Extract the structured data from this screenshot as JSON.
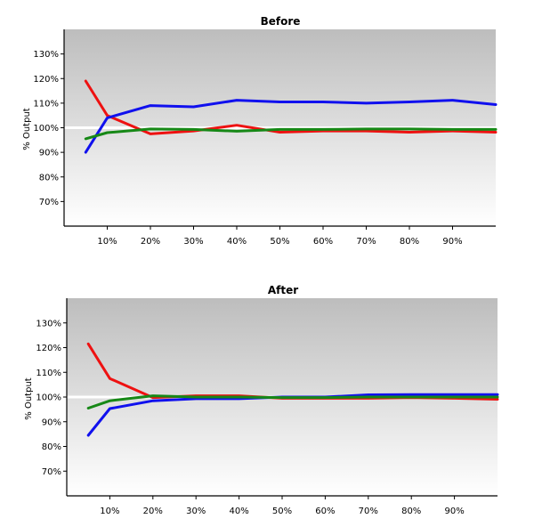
{
  "chart_data": [
    {
      "type": "line",
      "title": "Before",
      "xlabel": "",
      "ylabel": "% Output",
      "x": [
        5,
        10,
        20,
        30,
        40,
        50,
        60,
        70,
        80,
        90,
        100
      ],
      "xticks": [
        "10%",
        "20%",
        "30%",
        "40%",
        "50%",
        "60%",
        "70%",
        "80%",
        "90%"
      ],
      "xlim": [
        0,
        100
      ],
      "yticks": [
        "70%",
        "80%",
        "90%",
        "100%",
        "110%",
        "120%",
        "130%"
      ],
      "ylim": [
        60,
        140
      ],
      "reference_line": 100,
      "series": [
        {
          "color": "#ee1111",
          "values": [
            119,
            105,
            97.5,
            98.7,
            101,
            98.2,
            98.7,
            98.7,
            98.2,
            98.7,
            98.2
          ]
        },
        {
          "color": "#1010ee",
          "values": [
            90,
            104,
            109,
            108.5,
            111.2,
            110.5,
            110.5,
            110,
            110.5,
            111.2,
            109.4
          ]
        },
        {
          "color": "#168816",
          "values": [
            95.5,
            98,
            99.5,
            99.3,
            98.6,
            99.3,
            99.3,
            99.5,
            99.5,
            99.3,
            99.3
          ]
        }
      ]
    },
    {
      "type": "line",
      "title": "After",
      "xlabel": "",
      "ylabel": "% Output",
      "x": [
        5,
        10,
        20,
        30,
        40,
        50,
        60,
        70,
        80,
        90,
        100
      ],
      "xticks": [
        "10%",
        "20%",
        "30%",
        "40%",
        "50%",
        "60%",
        "70%",
        "80%",
        "90%"
      ],
      "xlim": [
        0,
        100
      ],
      "yticks": [
        "70%",
        "80%",
        "90%",
        "100%",
        "110%",
        "120%",
        "130%"
      ],
      "ylim": [
        60,
        140
      ],
      "reference_line": 100,
      "series": [
        {
          "color": "#ee1111",
          "values": [
            121.5,
            107.5,
            99.8,
            100.5,
            100.5,
            99.5,
            99.5,
            99.5,
            99.8,
            99.5,
            99.1
          ]
        },
        {
          "color": "#1010ee",
          "values": [
            84.5,
            95.3,
            98.5,
            99.3,
            99.3,
            100,
            100,
            100.9,
            101,
            101,
            101
          ]
        },
        {
          "color": "#168816",
          "values": [
            95.5,
            98.5,
            100.5,
            100,
            100,
            99.8,
            99.8,
            100,
            100,
            100,
            100
          ]
        }
      ]
    }
  ]
}
